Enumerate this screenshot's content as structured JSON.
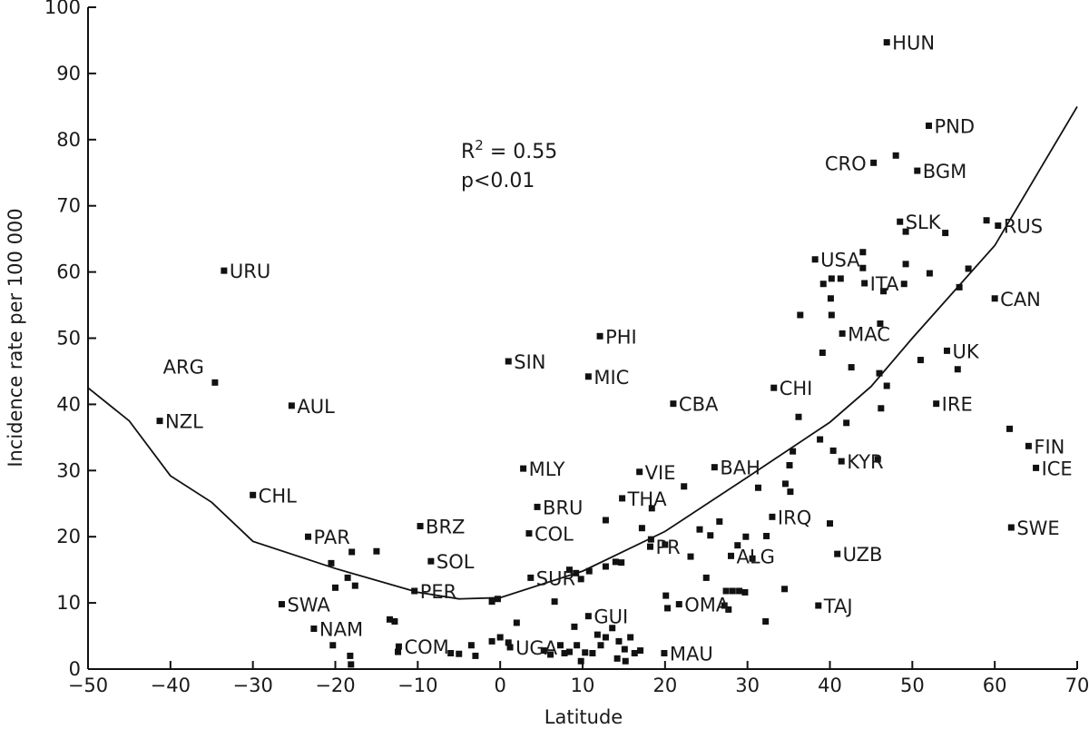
{
  "chart_data": {
    "type": "scatter",
    "title": "",
    "xlabel": "Latitude",
    "ylabel": "Incidence rate per 100 000",
    "xlim": [
      -50,
      70
    ],
    "ylim": [
      0,
      100
    ],
    "x_ticks": [
      "−50",
      "−40",
      "−30",
      "−20",
      "−10",
      "0",
      "10",
      "20",
      "30",
      "40",
      "50",
      "60",
      "70"
    ],
    "y_ticks": [
      "0",
      "10",
      "20",
      "30",
      "40",
      "50",
      "60",
      "70",
      "80",
      "90",
      "100"
    ],
    "grid": false,
    "annotations": [
      {
        "r_squared_prefix": "R",
        "r_squared_sup": "2",
        "r_squared_value": " = 0.55"
      },
      {
        "text": "p<0.01"
      }
    ],
    "fit_curve": {
      "type": "quadratic",
      "points": [
        [
          -50,
          42.5
        ],
        [
          -45,
          37.5
        ],
        [
          -40,
          29.2
        ],
        [
          -35,
          25.2
        ],
        [
          -30,
          19.3
        ],
        [
          -20,
          15.2
        ],
        [
          -10,
          11.6
        ],
        [
          -5,
          10.6
        ],
        [
          0,
          10.8
        ],
        [
          10,
          14.8
        ],
        [
          20,
          20.8
        ],
        [
          30,
          29.0
        ],
        [
          40,
          37.3
        ],
        [
          45,
          42.7
        ],
        [
          50,
          50.0
        ],
        [
          60,
          64.0
        ],
        [
          70,
          85.0
        ]
      ]
    },
    "labeled_points": [
      {
        "label": "HUN",
        "x": 46.9,
        "y": 94.7
      },
      {
        "label": "PND",
        "x": 52.0,
        "y": 82.1
      },
      {
        "label": "CRO",
        "x": 45.3,
        "y": 76.5
      },
      {
        "label": "BGM",
        "x": 50.6,
        "y": 75.3
      },
      {
        "label": "SLK",
        "x": 48.5,
        "y": 67.6
      },
      {
        "label": "RUS",
        "x": 60.4,
        "y": 67.0
      },
      {
        "label": "USA",
        "x": 38.2,
        "y": 61.9
      },
      {
        "label": "ITA",
        "x": 44.2,
        "y": 58.3
      },
      {
        "label": "CAN",
        "x": 60.0,
        "y": 56.0
      },
      {
        "label": "URU",
        "x": -33.5,
        "y": 60.2
      },
      {
        "label": "PHI",
        "x": 12.1,
        "y": 50.3
      },
      {
        "label": "MAC",
        "x": 41.5,
        "y": 50.7
      },
      {
        "label": "UK",
        "x": 54.2,
        "y": 48.1
      },
      {
        "label": "SIN",
        "x": 1.0,
        "y": 46.5
      },
      {
        "label": "MIC",
        "x": 10.7,
        "y": 44.2
      },
      {
        "label": "ARG",
        "x": -34.6,
        "y": 43.3
      },
      {
        "label": "CHI",
        "x": 33.2,
        "y": 42.5
      },
      {
        "label": "AUL",
        "x": -25.3,
        "y": 39.8
      },
      {
        "label": "CBA",
        "x": 21.0,
        "y": 40.1
      },
      {
        "label": "IRE",
        "x": 52.9,
        "y": 40.1
      },
      {
        "label": "NZL",
        "x": -41.3,
        "y": 37.5
      },
      {
        "label": "FIN",
        "x": 64.1,
        "y": 33.7
      },
      {
        "label": "KYR",
        "x": 41.4,
        "y": 31.4
      },
      {
        "label": "ICE",
        "x": 65.0,
        "y": 30.4
      },
      {
        "label": "MLY",
        "x": 2.8,
        "y": 30.3
      },
      {
        "label": "BAH",
        "x": 26.0,
        "y": 30.5
      },
      {
        "label": "VIE",
        "x": 16.9,
        "y": 29.8
      },
      {
        "label": "CHL",
        "x": -30.0,
        "y": 26.3
      },
      {
        "label": "THA",
        "x": 14.8,
        "y": 25.8
      },
      {
        "label": "BRU",
        "x": 4.5,
        "y": 24.5
      },
      {
        "label": "IRQ",
        "x": 33.0,
        "y": 23.0
      },
      {
        "label": "BRZ",
        "x": -9.7,
        "y": 21.6
      },
      {
        "label": "SWE",
        "x": 62.0,
        "y": 21.4
      },
      {
        "label": "COL",
        "x": 3.5,
        "y": 20.5
      },
      {
        "label": "PAR",
        "x": -23.3,
        "y": 20.0
      },
      {
        "label": "PR",
        "x": 18.2,
        "y": 18.5
      },
      {
        "label": "UZB",
        "x": 40.9,
        "y": 17.4
      },
      {
        "label": "ALG",
        "x": 28.0,
        "y": 17.1
      },
      {
        "label": "SOL",
        "x": -8.4,
        "y": 16.3
      },
      {
        "label": "SUR",
        "x": 3.7,
        "y": 13.8
      },
      {
        "label": "PER",
        "x": -10.4,
        "y": 11.8
      },
      {
        "label": "OMA",
        "x": 21.7,
        "y": 9.8
      },
      {
        "label": "SWA",
        "x": -26.5,
        "y": 9.8
      },
      {
        "label": "TAJ",
        "x": 38.6,
        "y": 9.6
      },
      {
        "label": "GUI",
        "x": 10.7,
        "y": 8.0
      },
      {
        "label": "NAM",
        "x": -22.6,
        "y": 6.1
      },
      {
        "label": "COM",
        "x": -12.3,
        "y": 3.4
      },
      {
        "label": "UGA",
        "x": 1.2,
        "y": 3.3
      },
      {
        "label": "MAU",
        "x": 19.9,
        "y": 2.4
      }
    ],
    "unlabeled_points": [
      [
        -20.5,
        16.0
      ],
      [
        -18.0,
        17.7
      ],
      [
        -15.0,
        17.8
      ],
      [
        -20.0,
        12.3
      ],
      [
        -18.5,
        13.8
      ],
      [
        -17.6,
        12.6
      ],
      [
        -13.4,
        7.5
      ],
      [
        -12.8,
        7.2
      ],
      [
        -20.3,
        3.6
      ],
      [
        -18.2,
        2.0
      ],
      [
        -18.1,
        0.7
      ],
      [
        -12.4,
        2.6
      ],
      [
        -5.0,
        2.3
      ],
      [
        -6.0,
        2.4
      ],
      [
        -3.5,
        3.6
      ],
      [
        -3.0,
        2.0
      ],
      [
        -1.0,
        4.2
      ],
      [
        0.0,
        4.8
      ],
      [
        1.0,
        4.0
      ],
      [
        -1.0,
        10.2
      ],
      [
        -0.3,
        10.6
      ],
      [
        2.0,
        7.0
      ],
      [
        5.3,
        2.8
      ],
      [
        6.1,
        2.2
      ],
      [
        7.3,
        3.6
      ],
      [
        7.8,
        2.4
      ],
      [
        8.4,
        2.6
      ],
      [
        9.3,
        3.6
      ],
      [
        10.3,
        2.5
      ],
      [
        11.2,
        2.4
      ],
      [
        12.2,
        3.6
      ],
      [
        12.8,
        4.8
      ],
      [
        13.6,
        6.2
      ],
      [
        14.4,
        4.2
      ],
      [
        15.1,
        3.0
      ],
      [
        15.8,
        4.8
      ],
      [
        16.3,
        2.4
      ],
      [
        9.8,
        1.2
      ],
      [
        14.2,
        1.6
      ],
      [
        15.2,
        1.2
      ],
      [
        17.0,
        2.8
      ],
      [
        11.8,
        5.2
      ],
      [
        9.0,
        6.4
      ],
      [
        6.6,
        10.2
      ],
      [
        8.4,
        15.0
      ],
      [
        9.2,
        14.5
      ],
      [
        9.8,
        13.6
      ],
      [
        10.8,
        14.8
      ],
      [
        12.8,
        15.5
      ],
      [
        14.0,
        16.2
      ],
      [
        14.7,
        16.1
      ],
      [
        12.8,
        22.5
      ],
      [
        17.2,
        21.3
      ],
      [
        18.3,
        19.6
      ],
      [
        20.0,
        18.8
      ],
      [
        18.4,
        24.3
      ],
      [
        22.3,
        27.6
      ],
      [
        20.1,
        11.1
      ],
      [
        20.3,
        9.2
      ],
      [
        23.1,
        17.0
      ],
      [
        24.2,
        21.1
      ],
      [
        25.0,
        13.8
      ],
      [
        25.5,
        20.2
      ],
      [
        26.6,
        22.3
      ],
      [
        27.2,
        9.6
      ],
      [
        27.4,
        11.8
      ],
      [
        28.2,
        11.8
      ],
      [
        27.7,
        9.0
      ],
      [
        28.8,
        18.7
      ],
      [
        29.0,
        11.8
      ],
      [
        29.7,
        11.6
      ],
      [
        29.8,
        20.0
      ],
      [
        30.6,
        16.7
      ],
      [
        31.3,
        27.4
      ],
      [
        32.3,
        20.1
      ],
      [
        32.2,
        7.2
      ],
      [
        34.5,
        12.1
      ],
      [
        34.6,
        28.0
      ],
      [
        35.1,
        30.8
      ],
      [
        35.5,
        32.9
      ],
      [
        35.2,
        26.8
      ],
      [
        36.2,
        38.1
      ],
      [
        36.4,
        53.5
      ],
      [
        38.8,
        34.7
      ],
      [
        39.1,
        47.8
      ],
      [
        39.2,
        58.2
      ],
      [
        40.2,
        59.0
      ],
      [
        40.1,
        56.0
      ],
      [
        40.4,
        33.0
      ],
      [
        40.2,
        53.5
      ],
      [
        40.0,
        22.0
      ],
      [
        41.3,
        59.0
      ],
      [
        42.0,
        37.2
      ],
      [
        42.6,
        45.6
      ],
      [
        44.0,
        63.0
      ],
      [
        44.0,
        60.6
      ],
      [
        46.1,
        52.2
      ],
      [
        46.0,
        44.7
      ],
      [
        46.2,
        39.4
      ],
      [
        46.5,
        57.1
      ],
      [
        46.9,
        42.8
      ],
      [
        48.0,
        77.6
      ],
      [
        49.0,
        58.2
      ],
      [
        49.2,
        61.2
      ],
      [
        49.2,
        66.1
      ],
      [
        51.0,
        46.7
      ],
      [
        52.1,
        59.8
      ],
      [
        54.0,
        65.9
      ],
      [
        55.5,
        45.3
      ],
      [
        55.7,
        57.7
      ],
      [
        56.8,
        60.5
      ],
      [
        59.0,
        67.8
      ],
      [
        61.8,
        36.3
      ],
      [
        45.8,
        31.7
      ]
    ]
  }
}
